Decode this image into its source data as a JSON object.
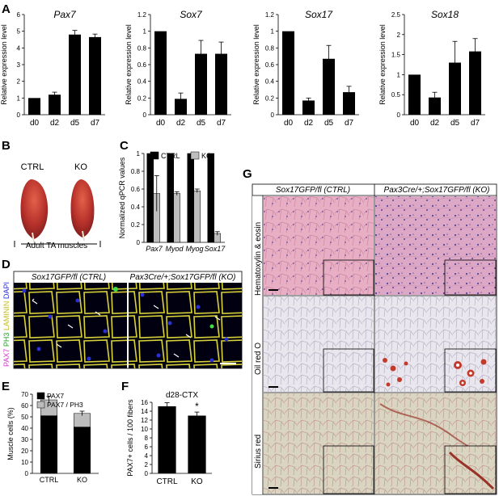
{
  "panel_labels": [
    "A",
    "B",
    "C",
    "D",
    "E",
    "F",
    "G"
  ],
  "chart_data": [
    {
      "id": "A1",
      "type": "bar",
      "title": "Pax7",
      "ylabel": "Relative expression level",
      "categories": [
        "d0",
        "d2",
        "d5",
        "d7"
      ],
      "values": [
        1.0,
        1.2,
        4.8,
        4.65
      ],
      "errors": [
        0.0,
        0.15,
        0.25,
        0.18
      ],
      "ylim": [
        0,
        6
      ],
      "yticks": [
        "0",
        "1",
        "2",
        "3",
        "4",
        "5",
        "6"
      ]
    },
    {
      "id": "A2",
      "type": "bar",
      "title": "Sox7",
      "ylabel": "Relative expression level",
      "categories": [
        "d0",
        "d2",
        "d5",
        "d7"
      ],
      "values": [
        1.0,
        0.19,
        0.73,
        0.73
      ],
      "errors": [
        0.0,
        0.07,
        0.16,
        0.14
      ],
      "ylim": [
        0,
        1.2
      ],
      "yticks": [
        "0",
        "0.2",
        "0.4",
        "0.6",
        "0.8",
        "1",
        "1.2"
      ]
    },
    {
      "id": "A3",
      "type": "bar",
      "title": "Sox17",
      "ylabel": "Relative expression level",
      "categories": [
        "d0",
        "d2",
        "d5",
        "d7"
      ],
      "values": [
        1.0,
        0.17,
        0.67,
        0.27
      ],
      "errors": [
        0.0,
        0.03,
        0.16,
        0.07
      ],
      "ylim": [
        0,
        1.2
      ],
      "yticks": [
        "0",
        "0.2",
        "0.4",
        "0.6",
        "0.8",
        "1",
        "1.2"
      ]
    },
    {
      "id": "A4",
      "type": "bar",
      "title": "Sox18",
      "ylabel": "Relative expression level",
      "categories": [
        "d0",
        "d2",
        "d5",
        "d7"
      ],
      "values": [
        1.0,
        0.43,
        1.3,
        1.58
      ],
      "errors": [
        0.0,
        0.13,
        0.53,
        0.32
      ],
      "ylim": [
        0,
        2.5
      ],
      "yticks": [
        "0",
        "0.5",
        "1",
        "1.5",
        "2",
        "2.5"
      ]
    },
    {
      "id": "C",
      "type": "bar",
      "ylabel": "Normalized qPCR values",
      "categories": [
        "Pax7",
        "Myod",
        "Myog",
        "Sox17"
      ],
      "series": [
        {
          "name": "CTRL",
          "color": "#000000",
          "values": [
            1.0,
            1.0,
            1.0,
            1.0
          ],
          "errors": [
            0,
            0,
            0,
            0
          ]
        },
        {
          "name": "KO",
          "color": "#bdbdbd",
          "values": [
            0.55,
            0.55,
            0.58,
            0.1
          ],
          "errors": [
            0.2,
            0.02,
            0.02,
            0.02
          ]
        }
      ],
      "ylim": [
        0,
        1
      ],
      "yticks": [
        "0",
        "0.2",
        "0.4",
        "0.6",
        "0.8",
        "1"
      ],
      "legend": "top"
    },
    {
      "id": "E",
      "type": "bar",
      "stacked": true,
      "ylabel": "Muscle cells (%)",
      "categories": [
        "CTRL",
        "KO"
      ],
      "series": [
        {
          "name": "PAX7",
          "color": "#000000",
          "values": [
            51,
            41
          ],
          "errors": [
            6,
            5
          ]
        },
        {
          "name": "PAX7 / PH3",
          "color": "#bdbdbd",
          "values": [
            14,
            12
          ],
          "errors": [
            3,
            2
          ]
        }
      ],
      "ylim": [
        0,
        70
      ],
      "yticks": [
        "0",
        "10",
        "20",
        "30",
        "40",
        "50",
        "60",
        "70"
      ],
      "legend": "top-left"
    },
    {
      "id": "F",
      "type": "bar",
      "title": "d28-CTX",
      "ylabel": "PAX7+ cells / 100 fibers",
      "categories": [
        "CTRL",
        "KO"
      ],
      "values": [
        15.1,
        13.0
      ],
      "errors": [
        0.8,
        0.8
      ],
      "ylim": [
        0,
        16
      ],
      "yticks": [
        "0",
        "2",
        "4",
        "6",
        "8",
        "10",
        "12",
        "14",
        "16"
      ],
      "annotation": "*"
    }
  ],
  "panel_b": {
    "ctrl_label": "CTRL",
    "ko_label": "KO",
    "caption": "Adult TA muscles"
  },
  "panel_d": {
    "ctrl_header": "Sox17GFP/fl (CTRL)",
    "ko_header": "Pax3Cre/+;Sox17GFP/fl (KO)",
    "stain_labels": [
      "PAX7",
      "PH3",
      "LAMININ",
      "DAPI"
    ]
  },
  "panel_g": {
    "ctrl_header": "Sox17GFP/fl (CTRL)",
    "ko_header": "Pax3Cre/+;Sox17GFP/fl (KO)",
    "row_labels": [
      "Hematoxylin & eosin",
      "Oil red O",
      "Sirius red"
    ]
  }
}
